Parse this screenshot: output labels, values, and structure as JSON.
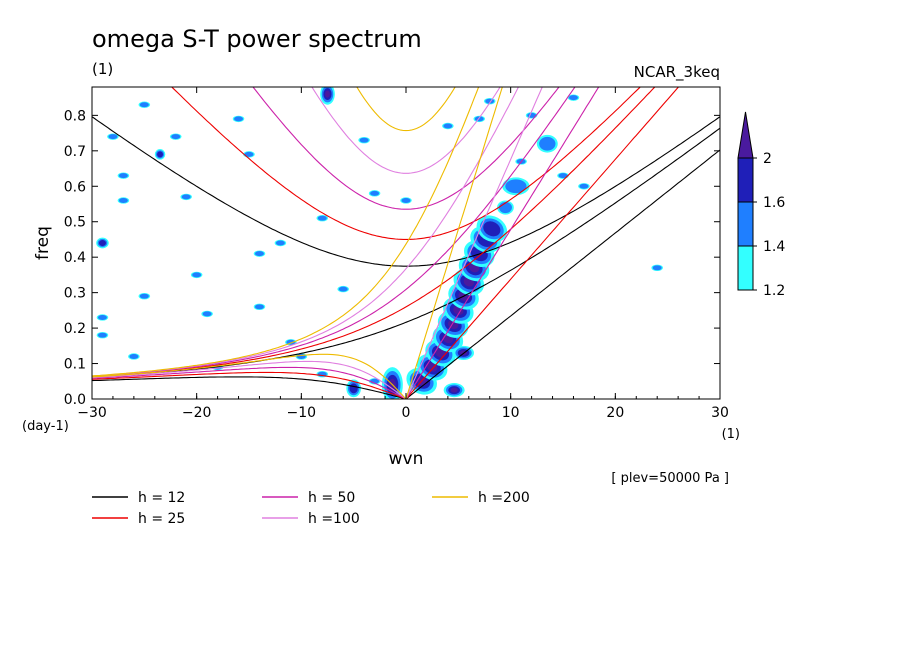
{
  "chart_data": {
    "type": "heatmap",
    "title": "omega S-T power spectrum",
    "subtitle_left": "(1)",
    "subtitle_right": "NCAR_3keq",
    "xlabel": "wvn",
    "ylabel": "freq",
    "x_unit": "(1)",
    "y_unit": "(day-1)",
    "footnote": "[ plev=50000 Pa ]",
    "xlim": [
      -30,
      30
    ],
    "ylim": [
      0,
      0.88
    ],
    "xticks": [
      "-30",
      "-20",
      "-10",
      "0",
      "10",
      "20",
      "30"
    ],
    "yticks": [
      "0.0",
      "0.1",
      "0.2",
      "0.3",
      "0.4",
      "0.5",
      "0.6",
      "0.7",
      "0.8"
    ],
    "colorbar": {
      "levels": [
        "1.2",
        "1.4",
        "1.6",
        "2"
      ],
      "colors": [
        "#33ffff",
        "#1f7fff",
        "#1f1fb8",
        "#4a1a9e"
      ]
    },
    "dispersion_curves": [
      {
        "name": "h = 12",
        "h": 12,
        "color": "#000000"
      },
      {
        "name": "h = 25",
        "h": 25,
        "color": "#ee0000"
      },
      {
        "name": "h = 50",
        "h": 50,
        "color": "#cc22aa"
      },
      {
        "name": "h =100",
        "h": 100,
        "color": "#e080e0"
      },
      {
        "name": "h =200",
        "h": 200,
        "color": "#eebb00"
      }
    ]
  }
}
